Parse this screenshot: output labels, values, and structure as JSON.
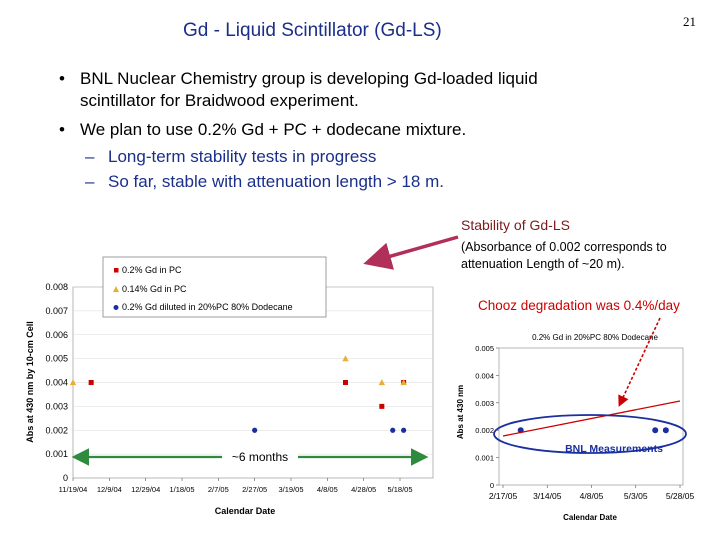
{
  "slide": {
    "title": "Gd - Liquid Scintillator (Gd-LS)",
    "page_number": "21",
    "bullet_symbol": "•",
    "dash_symbol": "–",
    "bullets": [
      "BNL Nuclear Chemistry group is developing Gd-loaded liquid",
      "scintillator for Braidwood experiment.",
      "We plan to use 0.2% Gd + PC + dodecane mixture."
    ],
    "sub_bullets": [
      "Long-term stability tests in progress",
      "So far, stable with attenuation length > 18 m."
    ]
  },
  "annotations": {
    "stability_title": "Stability of Gd-LS",
    "absorbance_note_1": "(Absorbance of 0.002 corresponds to",
    "absorbance_note_2": "attenuation Length of ~20 m).",
    "chooz": "Chooz degradation was 0.4%/day",
    "months": "~6 months",
    "bnl": "BNL Measurements"
  },
  "colors": {
    "title": "#1a2f8a",
    "sub_bullets": "#1a2f8a",
    "stability_title": "#7a1a1a",
    "chooz": "#cc0000",
    "arrow": "#b0305a",
    "months_arrow": "#2e8b3e",
    "series_pc": "#cc0000",
    "series_014": "#e8b030",
    "series_dodecane": "#1a2fa0",
    "bnl_ellipse": "#1a2fa0"
  },
  "chart_data": [
    {
      "type": "scatter",
      "xlabel": "Calendar Date",
      "ylabel": "Abs at 430 nm by 10-cm Cell",
      "ylim": [
        0,
        0.008
      ],
      "yticks": [
        "0",
        "0.001",
        "0.002",
        "0.003",
        "0.004",
        "0.005",
        "0.006",
        "0.007",
        "0.008"
      ],
      "xticks": [
        "11/19/04",
        "12/9/04",
        "12/29/04",
        "1/18/05",
        "2/7/05",
        "2/27/05",
        "3/19/05",
        "4/8/05",
        "4/28/05",
        "5/18/05"
      ],
      "grid": true,
      "legend_position": "top",
      "series": [
        {
          "name": "0.2% Gd in PC",
          "marker": "square",
          "color": "#cc0000",
          "points": [
            [
              "11/29/04",
              0.004
            ],
            [
              "4/18/05",
              0.004
            ],
            [
              "5/8/05",
              0.003
            ],
            [
              "5/20/05",
              0.004
            ]
          ]
        },
        {
          "name": "0.14% Gd in PC",
          "marker": "triangle",
          "color": "#e8b030",
          "points": [
            [
              "11/19/04",
              0.004
            ],
            [
              "4/18/05",
              0.005
            ],
            [
              "5/8/05",
              0.004
            ],
            [
              "5/20/05",
              0.004
            ]
          ]
        },
        {
          "name": "0.2% Gd diluted in 20%PC 80% Dodecane",
          "marker": "circle",
          "color": "#1a2fa0",
          "points": [
            [
              "2/27/05",
              0.002
            ],
            [
              "5/14/05",
              0.002
            ],
            [
              "5/20/05",
              0.002
            ]
          ]
        }
      ]
    },
    {
      "type": "scatter",
      "title": "0.2% Gd in 20%PC 80% Dodecane",
      "xlabel": "Calendar Date",
      "ylabel": "Abs at 430 nm",
      "ylim": [
        0,
        0.005
      ],
      "yticks": [
        "0",
        "0.001",
        "0.002",
        "0.003",
        "0.004",
        "0.005"
      ],
      "xticks": [
        "2/17/05",
        "3/14/05",
        "4/8/05",
        "5/3/05",
        "5/28/05"
      ],
      "series": [
        {
          "name": "",
          "marker": "circle",
          "color": "#1a2fa0",
          "points": [
            [
              "2/27/05",
              0.002
            ],
            [
              "5/14/05",
              0.002
            ],
            [
              "5/20/05",
              0.002
            ]
          ]
        }
      ]
    }
  ]
}
